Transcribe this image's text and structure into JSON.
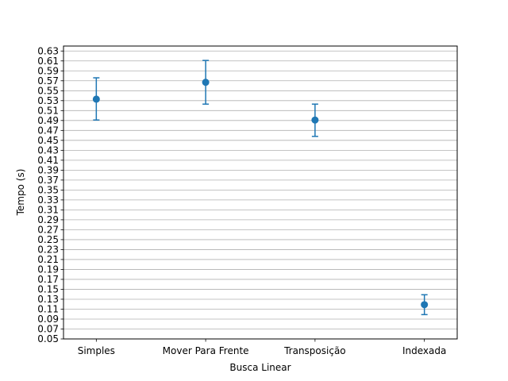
{
  "chart_data": {
    "type": "scatter",
    "title": "",
    "xlabel": "Busca Linear",
    "ylabel": "Tempo (s)",
    "categories": [
      "Simples",
      "Mover Para Frente",
      "Transposição",
      "Indexada"
    ],
    "series": [
      {
        "values": [
          0.533,
          0.567,
          0.491,
          0.119
        ],
        "error_low": [
          0.491,
          0.523,
          0.458,
          0.099
        ],
        "error_high": [
          0.576,
          0.611,
          0.523,
          0.139
        ]
      }
    ],
    "ylim": [
      0.05,
      0.64
    ],
    "yticks": [
      "0.05",
      "0.07",
      "0.09",
      "0.11",
      "0.13",
      "0.15",
      "0.17",
      "0.19",
      "0.21",
      "0.23",
      "0.25",
      "0.27",
      "0.29",
      "0.31",
      "0.33",
      "0.35",
      "0.37",
      "0.39",
      "0.41",
      "0.43",
      "0.45",
      "0.47",
      "0.49",
      "0.51",
      "0.53",
      "0.55",
      "0.57",
      "0.59",
      "0.61",
      "0.63"
    ],
    "grid": "horizontal",
    "legend": "none",
    "colors": {
      "series": "#1f77b4",
      "grid": "#b0b0b0",
      "axis": "#000000"
    }
  }
}
